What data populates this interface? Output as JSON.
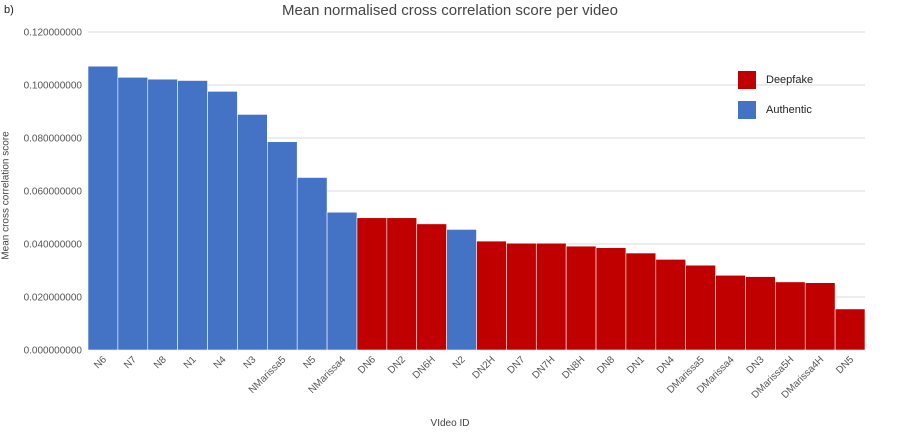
{
  "panel_label": "b)",
  "colors": {
    "Deepfake": "#c00000",
    "Authentic": "#4472c4",
    "grid": "#d9d9d9",
    "axis_text": "#555555"
  },
  "chart_data": {
    "type": "bar",
    "title": "Mean normalised cross correlation score per video",
    "xlabel": "VIdeo  ID",
    "ylabel": "Mean cross correlation score",
    "ylim": [
      0,
      0.12
    ],
    "yticks": [
      "0.000000000",
      "0.020000000",
      "0.040000000",
      "0.060000000",
      "0.080000000",
      "0.100000000",
      "0.120000000"
    ],
    "grid": true,
    "legend_position": "top-right",
    "legend": [
      "Deepfake",
      "Authentic"
    ],
    "categories": [
      "N6",
      "N7",
      "N8",
      "N1",
      "N4",
      "N3",
      "NMarissa5",
      "N5",
      "NMarissa4",
      "DN6",
      "DN2",
      "DN6H",
      "N2",
      "DN2H",
      "DN7",
      "DN7H",
      "DN8H",
      "DN8",
      "DN1",
      "DN4",
      "DMarissa5",
      "DMarissa4",
      "DN3",
      "DMarissa5H",
      "DMarissa4H",
      "DN5"
    ],
    "values": [
      0.1071,
      0.1029,
      0.1022,
      0.1017,
      0.0976,
      0.0889,
      0.0786,
      0.0651,
      0.052,
      0.0499,
      0.0499,
      0.0476,
      0.0455,
      0.0411,
      0.0403,
      0.0403,
      0.0392,
      0.0386,
      0.0366,
      0.0342,
      0.032,
      0.0282,
      0.0277,
      0.0257,
      0.0254,
      0.0155
    ],
    "classes": [
      "Authentic",
      "Authentic",
      "Authentic",
      "Authentic",
      "Authentic",
      "Authentic",
      "Authentic",
      "Authentic",
      "Authentic",
      "Deepfake",
      "Deepfake",
      "Deepfake",
      "Authentic",
      "Deepfake",
      "Deepfake",
      "Deepfake",
      "Deepfake",
      "Deepfake",
      "Deepfake",
      "Deepfake",
      "Deepfake",
      "Deepfake",
      "Deepfake",
      "Deepfake",
      "Deepfake",
      "Deepfake"
    ]
  }
}
